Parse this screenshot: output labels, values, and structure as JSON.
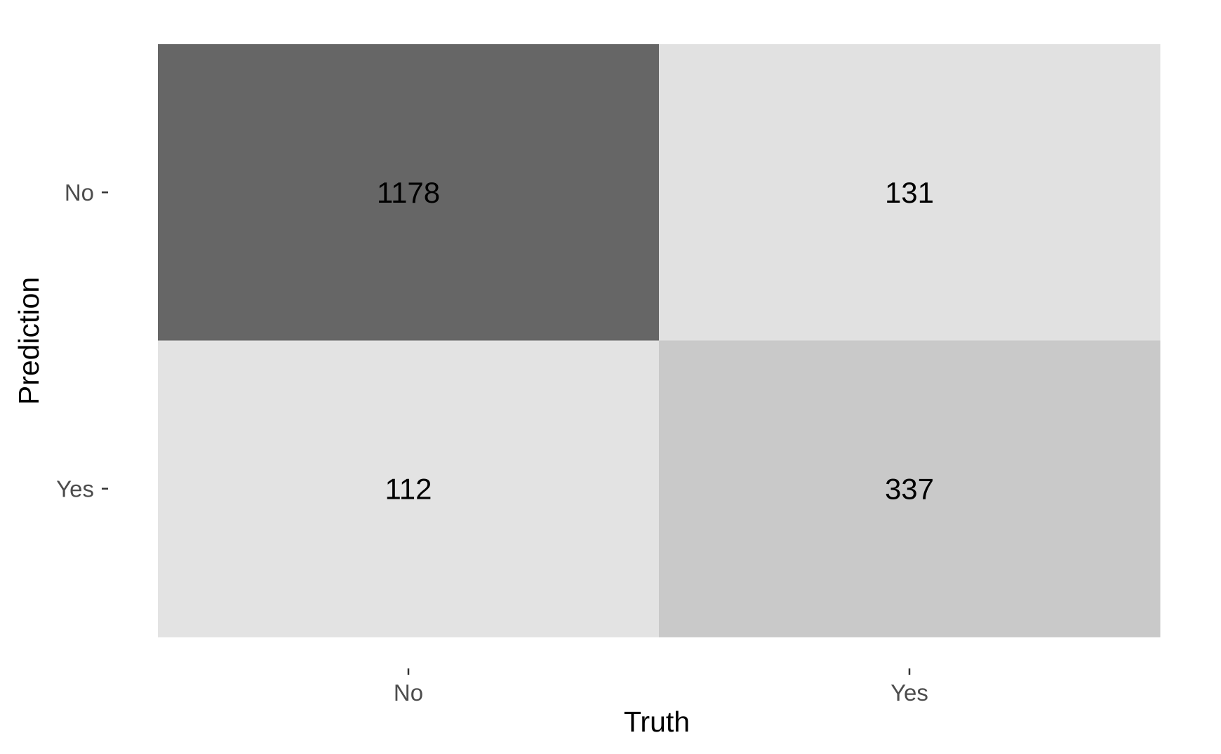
{
  "chart_data": {
    "type": "heatmap",
    "xlabel": "Truth",
    "ylabel": "Prediction",
    "x_categories": [
      "No",
      "Yes"
    ],
    "y_categories": [
      "No",
      "Yes"
    ],
    "cells": [
      {
        "truth": "No",
        "prediction": "No",
        "value": 1178,
        "label": "1178"
      },
      {
        "truth": "Yes",
        "prediction": "No",
        "value": 131,
        "label": "131"
      },
      {
        "truth": "No",
        "prediction": "Yes",
        "value": 112,
        "label": "112"
      },
      {
        "truth": "Yes",
        "prediction": "Yes",
        "value": 337,
        "label": "337"
      }
    ],
    "color_low": "#e3e3e3",
    "color_high": "#666666",
    "grid": false,
    "legend": "none"
  }
}
